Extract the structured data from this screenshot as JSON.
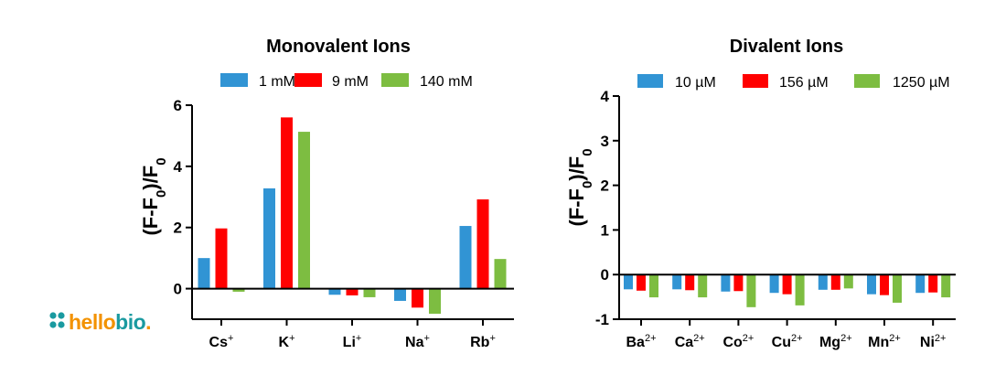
{
  "logo": {
    "text_1": "hello",
    "text_2": "bio",
    "text_3": ".",
    "colors": {
      "teal": "#1a9aa0",
      "orange": "#f39200"
    }
  },
  "chart_data": [
    {
      "type": "bar",
      "title": "Monovalent Ions",
      "ylabel": "(F-F0)/F0",
      "ylim": [
        -1,
        6
      ],
      "yticks": [
        0,
        2,
        4,
        6
      ],
      "categories": [
        "Cs+",
        "K+",
        "Li+",
        "Na+",
        "Rb+"
      ],
      "category_base": [
        "Cs",
        "K",
        "Li",
        "Na",
        "Rb"
      ],
      "category_sup": [
        "+",
        "+",
        "+",
        "+",
        "+"
      ],
      "legend_position": "top",
      "series": [
        {
          "name": "1 mM",
          "color": "#3194d4",
          "values": [
            1.0,
            3.28,
            -0.2,
            -0.4,
            2.05
          ]
        },
        {
          "name": "9 mM",
          "color": "#ff0000",
          "values": [
            1.97,
            5.6,
            -0.22,
            -0.62,
            2.92
          ]
        },
        {
          "name": "140 mM",
          "color": "#7dbd41",
          "values": [
            -0.1,
            5.13,
            -0.28,
            -0.82,
            0.97
          ]
        }
      ]
    },
    {
      "type": "bar",
      "title": "Divalent Ions",
      "ylabel": "(F-F0)/F0",
      "ylim": [
        -1,
        4
      ],
      "yticks": [
        -1,
        0,
        1,
        2,
        3,
        4
      ],
      "categories": [
        "Ba2+",
        "Ca2+",
        "Co2+",
        "Cu2+",
        "Mg2+",
        "Mn2+",
        "Ni2+"
      ],
      "category_base": [
        "Ba",
        "Ca",
        "Co",
        "Cu",
        "Mg",
        "Mn",
        "Ni"
      ],
      "category_sup": [
        "2+",
        "2+",
        "2+",
        "2+",
        "2+",
        "2+",
        "2+"
      ],
      "legend_position": "top",
      "series": [
        {
          "name": "10 µM",
          "color": "#3194d4",
          "values": [
            -0.33,
            -0.33,
            -0.38,
            -0.41,
            -0.34,
            -0.44,
            -0.41
          ]
        },
        {
          "name": "156 µM",
          "color": "#ff0000",
          "values": [
            -0.36,
            -0.35,
            -0.37,
            -0.44,
            -0.34,
            -0.46,
            -0.4
          ]
        },
        {
          "name": "1250 µM",
          "color": "#7dbd41",
          "values": [
            -0.51,
            -0.51,
            -0.73,
            -0.69,
            -0.31,
            -0.63,
            -0.51
          ]
        }
      ]
    }
  ]
}
